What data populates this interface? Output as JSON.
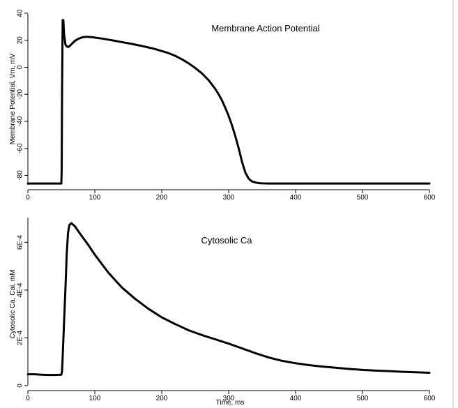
{
  "chart_data": [
    {
      "type": "line",
      "title": "Membrane Action Potential",
      "xlabel": "",
      "ylabel": "Membrane Potential, Vm, mV",
      "xlim": [
        0,
        600
      ],
      "ylim": [
        -87,
        40
      ],
      "xticks": [
        0,
        100,
        200,
        300,
        400,
        500,
        600
      ],
      "xtick_labels": [
        "0",
        "100",
        "200",
        "300",
        "400",
        "500",
        "600"
      ],
      "yticks": [
        -80,
        -60,
        -40,
        -20,
        0,
        20,
        40
      ],
      "ytick_labels": [
        "-80",
        "-60",
        "-40",
        "-20",
        "0",
        "20",
        "40"
      ],
      "grid": false,
      "series": [
        {
          "color": "#000000",
          "x": [
            0,
            20,
            40,
            50,
            50.5,
            51,
            52,
            53,
            54,
            56,
            58,
            60,
            62,
            65,
            70,
            75,
            80,
            85,
            90,
            95,
            100,
            110,
            120,
            130,
            140,
            150,
            160,
            170,
            180,
            190,
            200,
            210,
            220,
            230,
            240,
            250,
            260,
            270,
            280,
            285,
            290,
            295,
            300,
            305,
            310,
            315,
            320,
            325,
            330,
            335,
            340,
            345,
            350,
            360,
            380,
            400,
            450,
            500,
            550,
            600
          ],
          "y": [
            -86,
            -86,
            -86,
            -86,
            -75,
            -20,
            35,
            35,
            25,
            17,
            15.5,
            15,
            15.5,
            17,
            19.5,
            21,
            22,
            22.5,
            22.5,
            22.3,
            22,
            21.3,
            20.5,
            19.6,
            18.7,
            17.8,
            16.8,
            15.8,
            14.7,
            13.5,
            12,
            10.5,
            8.5,
            6,
            3,
            -0.5,
            -4.5,
            -9.5,
            -16,
            -20,
            -24.5,
            -30,
            -36,
            -43,
            -51,
            -60,
            -70,
            -78,
            -82.5,
            -84.5,
            -85.3,
            -85.7,
            -85.9,
            -86,
            -86,
            -86,
            -86,
            -86,
            -86,
            -86
          ]
        }
      ]
    },
    {
      "type": "line",
      "title": "Cytosolic Ca",
      "xlabel": "Time, ms",
      "ylabel": "Cytosolic Ca, Cai, mM",
      "xlim": [
        0,
        600
      ],
      "ylim": [
        0,
        0.00068
      ],
      "xticks": [
        0,
        100,
        200,
        300,
        400,
        500,
        600
      ],
      "xtick_labels": [
        "0",
        "100",
        "200",
        "300",
        "400",
        "500",
        "600"
      ],
      "yticks": [
        0,
        0.0002,
        0.0004,
        0.0006
      ],
      "ytick_labels": [
        "0",
        "2E-4",
        "4E-4",
        "6E-4"
      ],
      "grid": false,
      "series": [
        {
          "color": "#000000",
          "x": [
            0,
            10,
            20,
            30,
            40,
            50,
            51,
            52,
            54,
            56,
            58,
            60,
            62,
            65,
            70,
            80,
            90,
            100,
            120,
            140,
            160,
            180,
            200,
            220,
            240,
            260,
            280,
            300,
            320,
            340,
            360,
            380,
            400,
            420,
            440,
            460,
            480,
            500,
            520,
            540,
            560,
            580,
            600
          ],
          "y": [
            4.8e-05,
            4.8e-05,
            4.6e-05,
            4.5e-05,
            4.5e-05,
            4.6e-05,
            6e-05,
            0.00012,
            0.00026,
            0.0004,
            0.00055,
            0.00064,
            0.000672,
            0.00068,
            0.000668,
            0.000628,
            0.00059,
            0.000548,
            0.000474,
            0.000412,
            0.000364,
            0.000322,
            0.000286,
            0.000258,
            0.000232,
            0.000212,
            0.000194,
            0.000176,
            0.000156,
            0.000136,
            0.000118,
            0.000104,
            9.4e-05,
            8.6e-05,
            8e-05,
            7.5e-05,
            7e-05,
            6.6e-05,
            6.3e-05,
            6.1e-05,
            5.8e-05,
            5.6e-05,
            5.4e-05
          ]
        }
      ]
    }
  ]
}
